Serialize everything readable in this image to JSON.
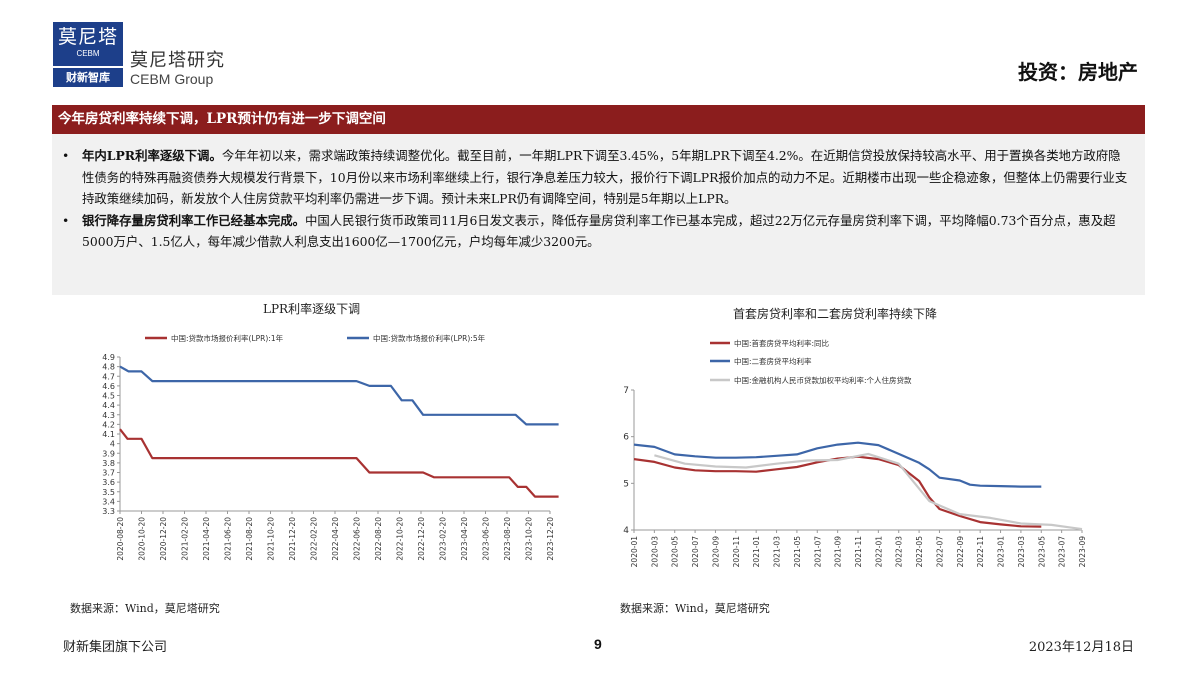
{
  "header": {
    "logo_cn": "莫尼塔",
    "logo_en": "CEBM",
    "logo_bottom": "财新智库",
    "brand_cn": "莫尼塔研究",
    "brand_en": "CEBM Group",
    "category": "投资：房地产"
  },
  "title": "今年房贷利率持续下调，LPR预计仍有进一步下调空间",
  "bullets": [
    {
      "lead": "年内LPR利率逐级下调。",
      "text": "今年年初以来，需求端政策持续调整优化。截至目前，一年期LPR下调至3.45%，5年期LPR下调至4.2%。在近期信贷投放保持较高水平、用于置换各类地方政府隐性债务的特殊再融资债券大规模发行背景下，10月份以来市场利率继续上行，银行净息差压力较大，报价行下调LPR报价加点的动力不足。近期楼市出现一些企稳迹象，但整体上仍需要行业支持政策继续加码，新发放个人住房贷款平均利率仍需进一步下调。预计未来LPR仍有调降空间，特别是5年期以上LPR。"
    },
    {
      "lead": "银行降存量房贷利率工作已经基本完成。",
      "text": "中国人民银行货币政策司11月6日发文表示，降低存量房贷利率工作已基本完成，超过22万亿元存量房贷利率下调，平均降幅0.73个百分点，惠及超5000万户、1.5亿人，每年减少借款人利息支出1600亿—1700亿元，户均每年减少3200元。"
    }
  ],
  "bullet_marker": "•",
  "chart1": {
    "title": "LPR利率逐级下调",
    "source": "数据来源：Wind，莫尼塔研究"
  },
  "chart2": {
    "title": "首套房贷利率和二套房贷利率持续下降",
    "source": "数据来源：Wind，莫尼塔研究"
  },
  "chart_data": [
    {
      "type": "line",
      "title": "LPR利率逐级下调",
      "ylim": [
        3.3,
        4.9
      ],
      "yticks": [
        "4.9",
        "4.8",
        "4.7",
        "4.6",
        "4.5",
        "4.4",
        "4.3",
        "4.2",
        "4.1",
        "4",
        "3.9",
        "3.8",
        "3.7",
        "3.6",
        "3.5",
        "3.4",
        "3.3"
      ],
      "xticks": [
        "2020-08-20",
        "2020-10-20",
        "2020-12-20",
        "2021-02-20",
        "2021-04-20",
        "2021-06-20",
        "2021-08-20",
        "2021-10-20",
        "2021-12-20",
        "2022-02-20",
        "2022-04-20",
        "2022-06-20",
        "2022-08-20",
        "2022-10-20",
        "2022-12-20",
        "2023-02-20",
        "2023-04-20",
        "2023-06-20",
        "2023-08-20",
        "2023-10-20",
        "2023-12-20"
      ],
      "x_range": [
        0,
        20
      ],
      "legend_position": "top",
      "series": [
        {
          "name": "中国:贷款市场报价利率(LPR):1年",
          "color": "#a83232",
          "points": [
            [
              0,
              4.15
            ],
            [
              0.35,
              4.05
            ],
            [
              1,
              4.05
            ],
            [
              1.5,
              3.85
            ],
            [
              11,
              3.85
            ],
            [
              11.6,
              3.7
            ],
            [
              14.1,
              3.7
            ],
            [
              14.6,
              3.65
            ],
            [
              18.1,
              3.65
            ],
            [
              18.5,
              3.55
            ],
            [
              18.9,
              3.55
            ],
            [
              19.3,
              3.45
            ],
            [
              20.4,
              3.45
            ]
          ]
        },
        {
          "name": "中国:贷款市场报价利率(LPR):5年",
          "color": "#3d66a8",
          "points": [
            [
              0,
              4.8
            ],
            [
              0.4,
              4.75
            ],
            [
              1,
              4.75
            ],
            [
              1.5,
              4.65
            ],
            [
              11,
              4.65
            ],
            [
              11.6,
              4.6
            ],
            [
              12.6,
              4.6
            ],
            [
              13.1,
              4.45
            ],
            [
              13.6,
              4.45
            ],
            [
              14.1,
              4.3
            ],
            [
              18.4,
              4.3
            ],
            [
              18.9,
              4.2
            ],
            [
              20.4,
              4.2
            ]
          ]
        }
      ]
    },
    {
      "type": "line",
      "title": "首套房贷利率和二套房贷利率持续下降",
      "ylim": [
        4,
        7
      ],
      "yticks": [
        "7",
        "6",
        "5",
        "4"
      ],
      "xticks": [
        "2020-01",
        "2020-03",
        "2020-05",
        "2020-07",
        "2020-09",
        "2020-11",
        "2021-01",
        "2021-03",
        "2021-05",
        "2021-07",
        "2021-09",
        "2021-11",
        "2022-01",
        "2022-03",
        "2022-05",
        "2022-07",
        "2022-09",
        "2022-11",
        "2023-01",
        "2023-03",
        "2023-05",
        "2023-07",
        "2023-09"
      ],
      "x_range": [
        0,
        44
      ],
      "legend_position": "top-left",
      "series": [
        {
          "name": "中国:首套房贷平均利率:同比",
          "color": "#a83232",
          "points": [
            [
              0,
              5.52
            ],
            [
              2,
              5.46
            ],
            [
              4,
              5.34
            ],
            [
              6,
              5.28
            ],
            [
              8,
              5.26
            ],
            [
              10,
              5.26
            ],
            [
              12,
              5.25
            ],
            [
              14,
              5.3
            ],
            [
              16,
              5.35
            ],
            [
              18,
              5.45
            ],
            [
              20,
              5.53
            ],
            [
              22,
              5.57
            ],
            [
              24,
              5.52
            ],
            [
              26,
              5.39
            ],
            [
              28,
              5.05
            ],
            [
              29,
              4.7
            ],
            [
              30,
              4.45
            ],
            [
              32,
              4.3
            ],
            [
              34,
              4.17
            ],
            [
              36,
              4.12
            ],
            [
              38,
              4.08
            ],
            [
              40,
              4.07
            ]
          ]
        },
        {
          "name": "中国:二套房贷平均利率",
          "color": "#3d66a8",
          "points": [
            [
              0,
              5.83
            ],
            [
              2,
              5.78
            ],
            [
              4,
              5.62
            ],
            [
              6,
              5.58
            ],
            [
              8,
              5.55
            ],
            [
              10,
              5.55
            ],
            [
              12,
              5.56
            ],
            [
              14,
              5.59
            ],
            [
              16,
              5.62
            ],
            [
              18,
              5.75
            ],
            [
              20,
              5.83
            ],
            [
              22,
              5.87
            ],
            [
              24,
              5.82
            ],
            [
              26,
              5.63
            ],
            [
              28,
              5.44
            ],
            [
              29,
              5.3
            ],
            [
              30,
              5.12
            ],
            [
              32,
              5.06
            ],
            [
              33,
              4.97
            ],
            [
              34,
              4.95
            ],
            [
              36,
              4.94
            ],
            [
              38,
              4.93
            ],
            [
              40,
              4.93
            ]
          ]
        },
        {
          "name": "中国:金融机构人民币贷款加权平均利率:个人住房贷款",
          "color": "#c8c8c8",
          "points": [
            [
              2,
              5.6
            ],
            [
              5,
              5.42
            ],
            [
              8,
              5.36
            ],
            [
              11,
              5.34
            ],
            [
              14,
              5.42
            ],
            [
              17,
              5.49
            ],
            [
              20,
              5.5
            ],
            [
              23,
              5.63
            ],
            [
              26,
              5.42
            ],
            [
              29,
              4.62
            ],
            [
              32,
              4.34
            ],
            [
              35,
              4.26
            ],
            [
              38,
              4.14
            ],
            [
              41,
              4.11
            ],
            [
              43,
              4.05
            ],
            [
              44,
              4.02
            ]
          ]
        }
      ]
    }
  ],
  "footer": {
    "left": "财新集团旗下公司",
    "page": "9",
    "date": "2023年12月18日"
  }
}
